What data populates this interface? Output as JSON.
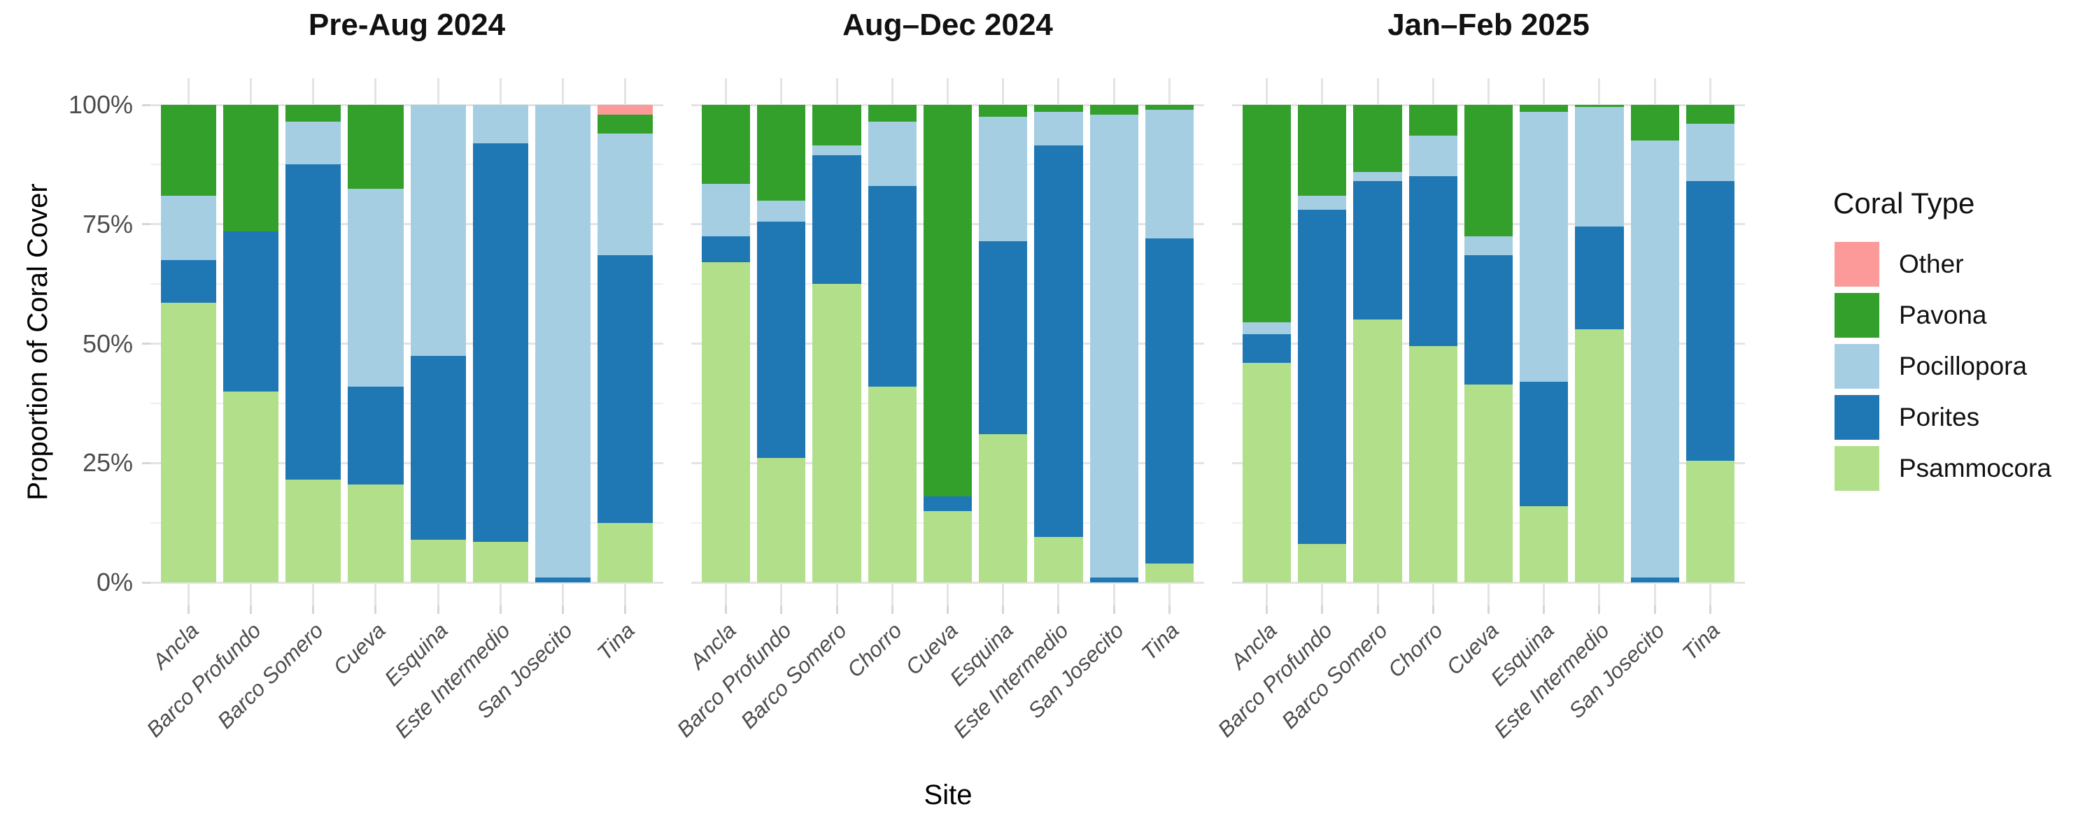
{
  "chart_data": {
    "type": "bar",
    "stacked": true,
    "proportional": true,
    "xlabel": "Site",
    "ylabel": "Proportion of Coral Cover",
    "ylim": [
      0,
      100
    ],
    "y_tick_values": [
      0,
      25,
      50,
      75,
      100
    ],
    "y_tick_labels": [
      "0%",
      "25%",
      "50%",
      "75%",
      "100%"
    ],
    "grid": "major 25% and minor 12.5% horizontal lines, vertical line per site",
    "legend": {
      "title": "Coral Type",
      "position": "right",
      "entries": [
        {
          "label": "Other",
          "color": "#FB9A99"
        },
        {
          "label": "Pavona",
          "color": "#33A02C"
        },
        {
          "label": "Pocillopora",
          "color": "#A6CEE3"
        },
        {
          "label": "Porites",
          "color": "#1F78B4"
        },
        {
          "label": "Psammocora",
          "color": "#B2DF8A"
        }
      ]
    },
    "stack_order_bottom_to_top": [
      "Psammocora",
      "Porites",
      "Pocillopora",
      "Pavona",
      "Other"
    ],
    "colors": {
      "Other": "#FB9A99",
      "Pavona": "#33A02C",
      "Pocillopora": "#A6CEE3",
      "Porites": "#1F78B4",
      "Psammocora": "#B2DF8A"
    },
    "panels": [
      {
        "title": "Pre-Aug 2024",
        "sites": [
          "Ancla",
          "Barco Profundo",
          "Barco Somero",
          "Cueva",
          "Esquina",
          "Este Intermedio",
          "San Josecito",
          "Tina"
        ],
        "series": [
          {
            "name": "Psammocora",
            "values": [
              58.5,
              40,
              21.5,
              20.5,
              9,
              8.5,
              0,
              12.5
            ]
          },
          {
            "name": "Porites",
            "values": [
              9,
              33.5,
              66,
              20.5,
              38.5,
              83.5,
              1,
              56
            ]
          },
          {
            "name": "Pocillopora",
            "values": [
              13.5,
              0,
              9,
              41.5,
              52.5,
              8,
              99,
              25.5
            ]
          },
          {
            "name": "Pavona",
            "values": [
              19,
              26.5,
              3.5,
              17.5,
              0,
              0,
              0,
              4
            ]
          },
          {
            "name": "Other",
            "values": [
              0,
              0,
              0,
              0,
              0,
              0,
              0,
              2
            ]
          }
        ]
      },
      {
        "title": "Aug–Dec 2024",
        "sites": [
          "Ancla",
          "Barco Profundo",
          "Barco Somero",
          "Chorro",
          "Cueva",
          "Esquina",
          "Este Intermedio",
          "San Josecito",
          "Tina"
        ],
        "series": [
          {
            "name": "Psammocora",
            "values": [
              67,
              26,
              62.5,
              41,
              15,
              31,
              9.5,
              0,
              4
            ]
          },
          {
            "name": "Porites",
            "values": [
              5.5,
              49.5,
              27,
              42,
              3,
              40.5,
              82,
              1,
              68
            ]
          },
          {
            "name": "Pocillopora",
            "values": [
              11,
              4.5,
              2,
              13.5,
              0,
              26,
              7,
              97,
              27
            ]
          },
          {
            "name": "Pavona",
            "values": [
              16.5,
              20,
              8.5,
              3.5,
              82,
              2.5,
              1.5,
              2,
              1
            ]
          },
          {
            "name": "Other",
            "values": [
              0,
              0,
              0,
              0,
              0,
              0,
              0,
              0,
              0
            ]
          }
        ]
      },
      {
        "title": "Jan–Feb 2025",
        "sites": [
          "Ancla",
          "Barco Profundo",
          "Barco Somero",
          "Chorro",
          "Cueva",
          "Esquina",
          "Este Intermedio",
          "San Josecito",
          "Tina"
        ],
        "series": [
          {
            "name": "Psammocora",
            "values": [
              46,
              8,
              55,
              49.5,
              41.5,
              16,
              53,
              0,
              25.5
            ]
          },
          {
            "name": "Porites",
            "values": [
              6,
              70,
              29,
              35.5,
              27,
              26,
              21.5,
              1,
              58.5
            ]
          },
          {
            "name": "Pocillopora",
            "values": [
              2.5,
              3,
              2,
              8.5,
              4,
              56.5,
              25,
              91.5,
              12
            ]
          },
          {
            "name": "Pavona",
            "values": [
              45.5,
              19,
              14,
              6.5,
              27.5,
              1.5,
              0.5,
              7.5,
              4
            ]
          },
          {
            "name": "Other",
            "values": [
              0,
              0,
              0,
              0,
              0,
              0,
              0,
              0,
              0
            ]
          }
        ]
      }
    ]
  }
}
